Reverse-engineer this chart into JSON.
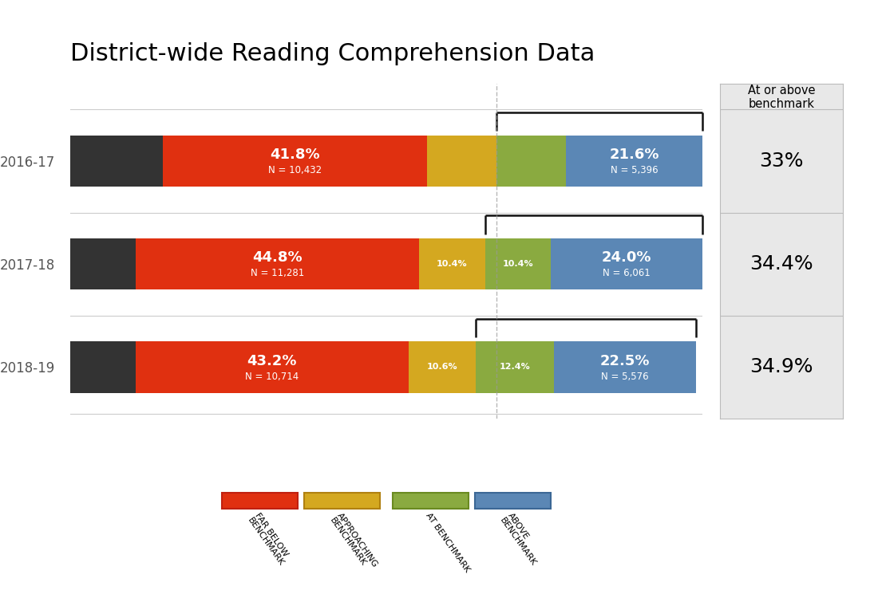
{
  "title": "District-wide Reading Comprehension Data",
  "years": [
    "2016-17",
    "2017-18",
    "2018-19"
  ],
  "segments": {
    "far_below": [
      14.6,
      10.4,
      10.3
    ],
    "below": [
      41.8,
      44.8,
      43.2
    ],
    "approaching": [
      11.0,
      10.4,
      10.6
    ],
    "at": [
      11.0,
      10.4,
      12.4
    ],
    "above": [
      21.6,
      24.0,
      22.5
    ]
  },
  "colors": {
    "far_below": "#333333",
    "below": "#e03010",
    "approaching": "#d4a820",
    "at": "#8aaa40",
    "above": "#5b87b5"
  },
  "labels": {
    "below_pct": [
      "41.8%",
      "44.8%",
      "43.2%"
    ],
    "below_n": [
      "N = 10,432",
      "N = 11,281",
      "N = 10,714"
    ],
    "above_pct": [
      "21.6%",
      "24.0%",
      "22.5%"
    ],
    "above_n": [
      "N = 5,396",
      "N = 6,061",
      "N = 5,576"
    ],
    "approaching_pct": [
      "",
      "10.4%",
      "10.6%"
    ],
    "at_pct": [
      "",
      "10.4%",
      "12.4%"
    ]
  },
  "at_or_above": [
    "33%",
    "34.4%",
    "34.9%"
  ],
  "legend_labels": [
    "FAR BELOW\nBENCHMARK",
    "APPROACHING\nBENCHMARK",
    "AT BENCHMARK",
    "ABOVE\nBENCHMARK"
  ],
  "legend_colors": [
    "#e03010",
    "#d4a820",
    "#8aaa40",
    "#5b87b5"
  ],
  "legend_border_colors": [
    "#c02010",
    "#b08010",
    "#6a8a20",
    "#3b6795"
  ],
  "sidebar_title": "At or above\nbenchmark",
  "background_color": "#ffffff",
  "sidebar_bg": "#e8e8e8",
  "separator_color": "#cccccc",
  "dashed_line_color": "#999999",
  "bracket_color": "#111111"
}
